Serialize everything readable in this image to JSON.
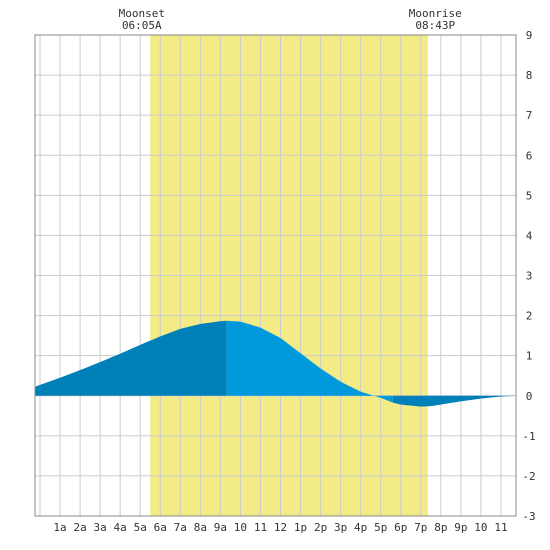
{
  "chart_data": {
    "type": "area",
    "title": "",
    "xlabel": "",
    "ylabel": "",
    "x_tick_labels": [
      "1a",
      "2a",
      "3a",
      "4a",
      "5a",
      "6a",
      "7a",
      "8a",
      "9a",
      "10",
      "11",
      "12",
      "1p",
      "2p",
      "3p",
      "4p",
      "5p",
      "6p",
      "7p",
      "8p",
      "9p",
      "10",
      "11"
    ],
    "x_range_hours": [
      -0.25,
      23.75
    ],
    "ylim": [
      -3,
      9
    ],
    "y_ticks": [
      -3,
      -2,
      -1,
      0,
      1,
      2,
      3,
      4,
      5,
      6,
      7,
      8,
      9
    ],
    "y_axis_side": "right",
    "grid": true,
    "daylight": {
      "start_hour": 5.5,
      "end_hour": 19.35,
      "color": "#f3eb85"
    },
    "series": [
      {
        "values_hour": [
          -0.25,
          0,
          1,
          2,
          3,
          4,
          5,
          6,
          7,
          8,
          9,
          9.3,
          10,
          11,
          12,
          13,
          14,
          15,
          16,
          17,
          17.6,
          18,
          19,
          19.5,
          20,
          21,
          22,
          23,
          23.75
        ],
        "values_ft": [
          0.22,
          0.27,
          0.45,
          0.64,
          0.84,
          1.05,
          1.27,
          1.48,
          1.67,
          1.79,
          1.86,
          1.87,
          1.85,
          1.7,
          1.44,
          1.06,
          0.68,
          0.35,
          0.1,
          -0.05,
          -0.17,
          -0.22,
          -0.27,
          -0.26,
          -0.22,
          -0.14,
          -0.07,
          -0.02,
          0.0
        ]
      }
    ],
    "tide_colors": {
      "dark": "#0080b8",
      "light": "#0099db"
    },
    "tide_shade_breaks_hour": [
      9.3,
      17.6
    ],
    "annotations": [
      {
        "label": "Moonset",
        "time": "06:05A",
        "hour": 5.08
      },
      {
        "label": "Moonrise",
        "time": "08:43P",
        "hour": 19.72
      }
    ]
  }
}
